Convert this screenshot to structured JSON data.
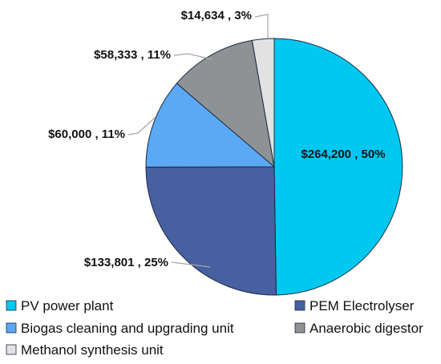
{
  "chart_data": {
    "type": "pie",
    "title": "",
    "series": [
      {
        "slices": [
          {
            "label": "PV power plant",
            "value": 264200,
            "percent": 50,
            "data_label": "$264,200 , 50%",
            "color": "#00C8F0"
          },
          {
            "label": "PEM Electrolyser",
            "value": 133801,
            "percent": 25,
            "data_label": "$133,801 , 25%",
            "color": "#4660A0"
          },
          {
            "label": "Biogas cleaning and upgrading unit",
            "value": 60000,
            "percent": 11,
            "data_label": "$60,000 , 11%",
            "color": "#5BA8F5"
          },
          {
            "label": "Anaerobic digestor",
            "value": 58333,
            "percent": 11,
            "data_label": "$58,333 , 11%",
            "color": "#8E9295"
          },
          {
            "label": "Methanol synthesis unit",
            "value": 14634,
            "percent": 3,
            "data_label": "$14,634 , 3%",
            "color": "#E2E2E2"
          }
        ]
      }
    ],
    "start_angle": "12 o'clock",
    "direction": "clockwise",
    "legend_position": "bottom",
    "slice_border_color": "#1E2A44"
  }
}
